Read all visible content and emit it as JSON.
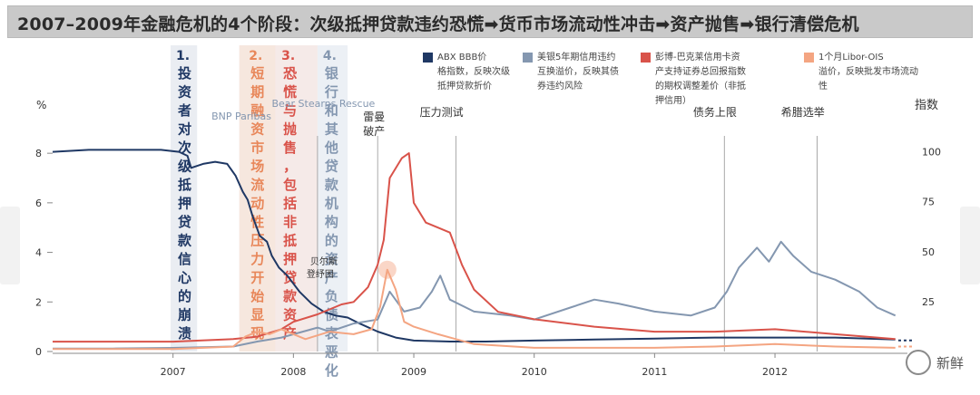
{
  "banner": {
    "title": "2007–2009年金融危机的4个阶段：次级抵押贷款违约恐慌➡货币市场流动性冲击➡资产抛售➡银行清偿危机"
  },
  "chart_data": {
    "type": "line",
    "xlim": [
      2006.0,
      2013.1
    ],
    "x_ticks": [
      "2007",
      "2008",
      "2009",
      "2010",
      "2011",
      "2012"
    ],
    "x_tick_values": [
      2007,
      2008,
      2009,
      2010,
      2011,
      2012
    ],
    "left_axis": {
      "label": "%",
      "ylim": [
        0,
        8.7
      ],
      "ticks": [
        "0",
        "2",
        "4",
        "6",
        "8"
      ],
      "tick_values": [
        0,
        2,
        4,
        6,
        8
      ]
    },
    "right_axis": {
      "label": "指数",
      "ylim": [
        0,
        108
      ],
      "ticks": [
        "100",
        "75",
        "50",
        "25"
      ],
      "tick_values": [
        100,
        75,
        50,
        25
      ]
    },
    "legend_position": "top-right",
    "legend": [
      {
        "text": "ABX BBB价格指数，反映次级抵押贷款折价",
        "color": "#1f3864"
      },
      {
        "text": "美银5年期信用违约互换溢价，反映其债券违约风险",
        "color": "#8497b0"
      },
      {
        "text": "彭博-巴克莱信用卡资产支持证券总回报指数的期权调整差价（非抵押信用）",
        "color": "#d9534a"
      },
      {
        "text": "1个月Libor-OIS 溢价，反映批发市场流动性",
        "color": "#f4a582"
      }
    ],
    "phases": [
      {
        "label_no": "1.",
        "label": "投资者对次级抵押贷款信心的崩溃",
        "color": "#1f3864",
        "x_range": [
          2006.98,
          2007.2
        ]
      },
      {
        "label_no": "2.",
        "label": "短期融资市场流动性压力开始显现",
        "color": "#e8875a",
        "x_range": [
          2007.55,
          2007.85
        ]
      },
      {
        "label_no": "3.",
        "label": "恐慌与抛售，包括非抵押贷款资产",
        "color": "#d9534a",
        "x_range": [
          2007.85,
          2008.2
        ]
      },
      {
        "label_no": "4.",
        "label": "银行和其他贷款机构的资产负债表恶化",
        "color": "#8497b0",
        "x_range": [
          2008.2,
          2008.45
        ]
      }
    ],
    "events": [
      {
        "label": "BNP Paribas",
        "x": 2007.6,
        "line": false
      },
      {
        "label": "Bear Stearns Rescue",
        "x": 2008.2,
        "line": false
      },
      {
        "label": "贝尔斯登纾困",
        "x": 2008.2,
        "line": true
      },
      {
        "label": "雷曼破产",
        "x": 2008.7,
        "line": true
      },
      {
        "label": "压力测试",
        "x": 2009.35,
        "line": true
      },
      {
        "label": "债务上限",
        "x": 2011.58,
        "line": true
      },
      {
        "label": "希腊选举",
        "x": 2012.35,
        "line": true
      }
    ],
    "series": [
      {
        "name": "ABX BBB价格指数，反映次级抵押贷款折价",
        "color": "#1f3864",
        "axis": "right",
        "points": [
          [
            2006.0,
            100
          ],
          [
            2006.3,
            101
          ],
          [
            2006.6,
            101
          ],
          [
            2006.9,
            101
          ],
          [
            2007.05,
            100
          ],
          [
            2007.12,
            98
          ],
          [
            2007.15,
            92
          ],
          [
            2007.25,
            94
          ],
          [
            2007.35,
            95
          ],
          [
            2007.45,
            94
          ],
          [
            2007.52,
            88
          ],
          [
            2007.58,
            80
          ],
          [
            2007.62,
            76
          ],
          [
            2007.66,
            68
          ],
          [
            2007.72,
            58
          ],
          [
            2007.78,
            55
          ],
          [
            2007.82,
            48
          ],
          [
            2007.88,
            42
          ],
          [
            2007.95,
            38
          ],
          [
            2008.05,
            30
          ],
          [
            2008.15,
            24
          ],
          [
            2008.25,
            20
          ],
          [
            2008.35,
            18
          ],
          [
            2008.45,
            17
          ],
          [
            2008.55,
            14
          ],
          [
            2008.7,
            10
          ],
          [
            2008.85,
            7
          ],
          [
            2009.0,
            5.5
          ],
          [
            2009.3,
            5
          ],
          [
            2009.6,
            5
          ],
          [
            2010.0,
            5.5
          ],
          [
            2010.5,
            6
          ],
          [
            2011.0,
            6.5
          ],
          [
            2011.5,
            7
          ],
          [
            2012.0,
            7
          ],
          [
            2012.5,
            7
          ],
          [
            2013.0,
            6
          ]
        ]
      },
      {
        "name": "美银5年期信用违约互换溢价，反映其债券违约风险",
        "color": "#8497b0",
        "axis": "right",
        "points": [
          [
            2006.0,
            1.5
          ],
          [
            2006.5,
            1.5
          ],
          [
            2007.0,
            1.8
          ],
          [
            2007.5,
            2.5
          ],
          [
            2007.7,
            5
          ],
          [
            2007.9,
            7
          ],
          [
            2008.2,
            12
          ],
          [
            2008.3,
            10
          ],
          [
            2008.5,
            14
          ],
          [
            2008.7,
            16
          ],
          [
            2008.8,
            30
          ],
          [
            2008.92,
            20
          ],
          [
            2009.05,
            22
          ],
          [
            2009.15,
            30
          ],
          [
            2009.22,
            38
          ],
          [
            2009.3,
            26
          ],
          [
            2009.5,
            20
          ],
          [
            2009.8,
            18
          ],
          [
            2010.0,
            16
          ],
          [
            2010.3,
            22
          ],
          [
            2010.5,
            26
          ],
          [
            2010.7,
            24
          ],
          [
            2011.0,
            20
          ],
          [
            2011.3,
            18
          ],
          [
            2011.5,
            22
          ],
          [
            2011.6,
            30
          ],
          [
            2011.7,
            42
          ],
          [
            2011.85,
            52
          ],
          [
            2011.95,
            45
          ],
          [
            2012.05,
            55
          ],
          [
            2012.15,
            48
          ],
          [
            2012.3,
            40
          ],
          [
            2012.5,
            36
          ],
          [
            2012.7,
            30
          ],
          [
            2012.85,
            22
          ],
          [
            2013.0,
            18
          ]
        ]
      },
      {
        "name": "彭博-巴克莱信用卡资产支持证券总回报指数的期权调整差价（非抵押信用）",
        "color": "#d9534a",
        "axis": "left",
        "points": [
          [
            2006.0,
            0.4
          ],
          [
            2006.5,
            0.4
          ],
          [
            2007.0,
            0.4
          ],
          [
            2007.5,
            0.5
          ],
          [
            2007.7,
            0.6
          ],
          [
            2007.9,
            0.9
          ],
          [
            2008.0,
            1.2
          ],
          [
            2008.2,
            1.5
          ],
          [
            2008.4,
            1.9
          ],
          [
            2008.5,
            2.0
          ],
          [
            2008.62,
            2.6
          ],
          [
            2008.7,
            3.5
          ],
          [
            2008.75,
            4.5
          ],
          [
            2008.8,
            7.0
          ],
          [
            2008.9,
            7.8
          ],
          [
            2008.96,
            8.0
          ],
          [
            2009.0,
            6.0
          ],
          [
            2009.1,
            5.2
          ],
          [
            2009.2,
            5.0
          ],
          [
            2009.3,
            4.8
          ],
          [
            2009.4,
            3.5
          ],
          [
            2009.5,
            2.5
          ],
          [
            2009.7,
            1.6
          ],
          [
            2010.0,
            1.3
          ],
          [
            2010.5,
            1.0
          ],
          [
            2011.0,
            0.8
          ],
          [
            2011.5,
            0.8
          ],
          [
            2012.0,
            0.9
          ],
          [
            2012.5,
            0.7
          ],
          [
            2013.0,
            0.5
          ]
        ]
      },
      {
        "name": "1个月Libor-OIS 溢价，反映批发市场流动性",
        "color": "#f4a582",
        "axis": "left",
        "points": [
          [
            2006.0,
            0.1
          ],
          [
            2006.5,
            0.1
          ],
          [
            2007.0,
            0.1
          ],
          [
            2007.5,
            0.2
          ],
          [
            2007.6,
            0.6
          ],
          [
            2007.7,
            0.8
          ],
          [
            2007.8,
            0.7
          ],
          [
            2007.9,
            0.9
          ],
          [
            2008.0,
            0.7
          ],
          [
            2008.1,
            0.5
          ],
          [
            2008.3,
            0.8
          ],
          [
            2008.5,
            0.7
          ],
          [
            2008.65,
            0.9
          ],
          [
            2008.72,
            1.8
          ],
          [
            2008.78,
            3.3
          ],
          [
            2008.85,
            2.5
          ],
          [
            2008.92,
            1.2
          ],
          [
            2009.0,
            1.0
          ],
          [
            2009.2,
            0.7
          ],
          [
            2009.5,
            0.3
          ],
          [
            2010.0,
            0.15
          ],
          [
            2011.0,
            0.15
          ],
          [
            2011.5,
            0.2
          ],
          [
            2012.0,
            0.3
          ],
          [
            2012.5,
            0.2
          ],
          [
            2013.0,
            0.15
          ]
        ]
      }
    ]
  },
  "watermark": {
    "text": "新鲜"
  }
}
